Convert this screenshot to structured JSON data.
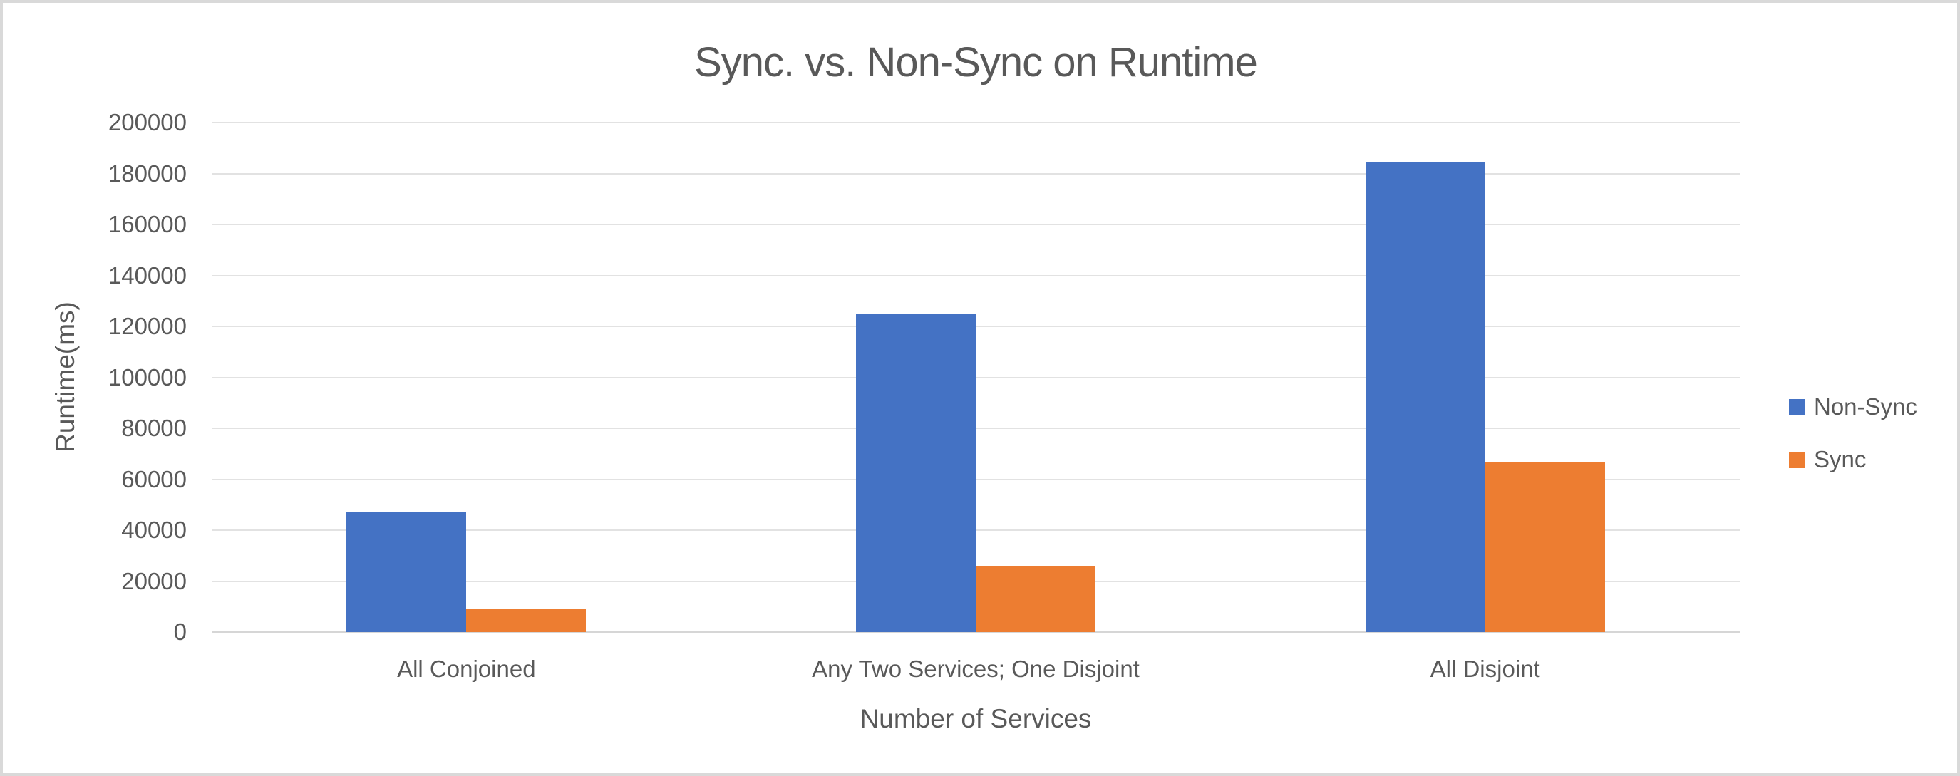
{
  "window": {
    "background": "#FFFFFF",
    "border_color": "#D9D9D9"
  },
  "chart_data": {
    "type": "bar",
    "title": "Sync. vs. Non-Sync on Runtime",
    "xlabel": "Number of Services",
    "ylabel": "Runtime(ms)",
    "categories": [
      "All Conjoined",
      "Any Two Services; One Disjoint",
      "All Disjoint"
    ],
    "series": [
      {
        "name": "Non-Sync",
        "color": "#4472C4",
        "values": [
          47000,
          125000,
          184500
        ]
      },
      {
        "name": "Sync",
        "color": "#ED7D31",
        "values": [
          9000,
          26000,
          66500
        ]
      }
    ],
    "ylim": [
      0,
      200000
    ],
    "ytick_step": 20000,
    "ytick_labels": [
      "0",
      "20000",
      "40000",
      "60000",
      "80000",
      "100000",
      "120000",
      "140000",
      "160000",
      "180000",
      "200000"
    ],
    "grid": "horizontal",
    "legend_position": "right",
    "legend_labels": [
      "Non-Sync",
      "Sync"
    ],
    "text_color": "#595959",
    "gridline_color": "#E2E2E2",
    "axisline_color": "#D6D6D6"
  }
}
